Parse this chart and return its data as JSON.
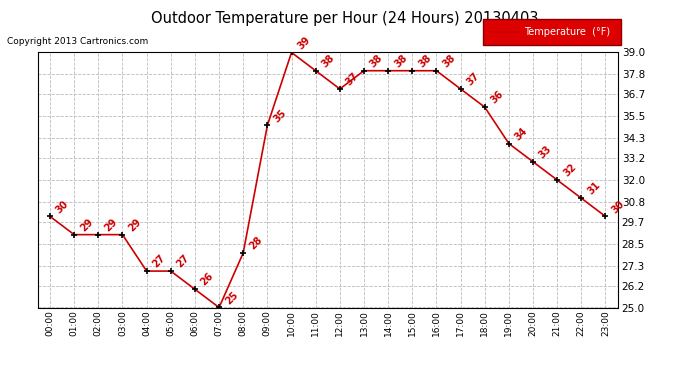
{
  "title": "Outdoor Temperature per Hour (24 Hours) 20130403",
  "copyright": "Copyright 2013 Cartronics.com",
  "legend_label": "Temperature  (°F)",
  "hours": [
    "00:00",
    "01:00",
    "02:00",
    "03:00",
    "04:00",
    "05:00",
    "06:00",
    "07:00",
    "08:00",
    "09:00",
    "10:00",
    "11:00",
    "12:00",
    "13:00",
    "14:00",
    "15:00",
    "16:00",
    "17:00",
    "18:00",
    "19:00",
    "20:00",
    "21:00",
    "22:00",
    "23:00"
  ],
  "temps": [
    30,
    29,
    29,
    29,
    27,
    27,
    26,
    25,
    28,
    35,
    39,
    38,
    37,
    38,
    38,
    38,
    38,
    37,
    36,
    34,
    33,
    32,
    31,
    30
  ],
  "ylim": [
    25.0,
    39.0
  ],
  "yticks": [
    25.0,
    26.2,
    27.3,
    28.5,
    29.7,
    30.8,
    32.0,
    33.2,
    34.3,
    35.5,
    36.7,
    37.8,
    39.0
  ],
  "line_color": "#cc0000",
  "marker_color": "#000000",
  "bg_color": "#ffffff",
  "grid_color": "#bbbbbb",
  "label_color": "#cc0000",
  "title_color": "#000000",
  "legend_bg": "#dd0000",
  "legend_text": "#ffffff",
  "copyright_color": "#000000"
}
